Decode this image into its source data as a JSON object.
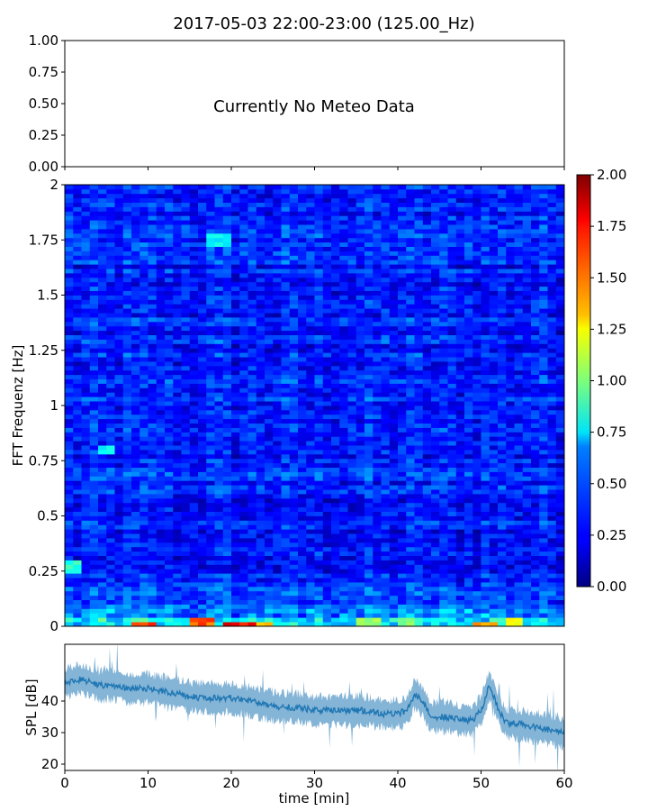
{
  "title": "2017-05-03 22:00-23:00 (125.00_Hz)",
  "meteo": {
    "message": "Currently No Meteo Data",
    "yticks": [
      "0.00",
      "0.25",
      "0.50",
      "0.75",
      "1.00"
    ]
  },
  "chart_data": [
    {
      "type": "line",
      "panel": "meteo",
      "title": "2017-05-03 22:00-23:00 (125.00_Hz)",
      "ylim": [
        0,
        1
      ],
      "xlim": [
        0,
        60
      ],
      "yticks": [
        "0.00",
        "0.25",
        "0.50",
        "0.75",
        "1.00"
      ],
      "xtick_labels_shown": false,
      "annotation": "Currently No Meteo Data",
      "series": []
    },
    {
      "type": "heatmap",
      "panel": "spectrogram",
      "ylabel": "FFT Frequenz [Hz]",
      "xlim": [
        0,
        60
      ],
      "ylim": [
        0,
        2
      ],
      "yticks": [
        "0",
        "0.25",
        "0.5",
        "0.75",
        "1",
        "1.25",
        "1.5",
        "1.75",
        "2"
      ],
      "colormap": "jet",
      "colorbar": {
        "range": [
          0,
          2
        ],
        "ticks": [
          "0.00",
          "0.25",
          "0.50",
          "0.75",
          "1.00",
          "1.25",
          "1.50",
          "1.75",
          "2.00"
        ]
      },
      "typical_value": 0.3,
      "hotspots": [
        {
          "time_min": 20.5,
          "freq_hz": 0.0,
          "value": 1.9
        },
        {
          "time_min": 21.5,
          "freq_hz": 0.0,
          "value": 1.85
        },
        {
          "time_min": 9.5,
          "freq_hz": 0.0,
          "value": 1.8
        },
        {
          "time_min": 17.0,
          "freq_hz": 0.02,
          "value": 1.7
        },
        {
          "time_min": 23.5,
          "freq_hz": 0.0,
          "value": 1.5
        },
        {
          "time_min": 50.5,
          "freq_hz": 0.0,
          "value": 1.55
        },
        {
          "time_min": 54.0,
          "freq_hz": 0.02,
          "value": 1.3
        },
        {
          "time_min": 36.5,
          "freq_hz": 0.02,
          "value": 1.15
        },
        {
          "time_min": 41.0,
          "freq_hz": 0.01,
          "value": 1.1
        },
        {
          "time_min": 1.0,
          "freq_hz": 0.27,
          "value": 0.9
        },
        {
          "time_min": 5.0,
          "freq_hz": 0.8,
          "value": 0.8
        },
        {
          "time_min": 18.5,
          "freq_hz": 1.75,
          "value": 0.8
        }
      ]
    },
    {
      "type": "line",
      "panel": "spl",
      "xlabel": "time [min]",
      "ylabel": "SPL [dB]",
      "xlim": [
        0,
        60
      ],
      "ylim": [
        18,
        58
      ],
      "xticks": [
        "0",
        "10",
        "20",
        "30",
        "40",
        "50",
        "60"
      ],
      "yticks": [
        "20",
        "30",
        "40"
      ],
      "color": "#1f77b4",
      "series": [
        {
          "x": [
            0,
            2,
            4,
            6,
            8,
            10,
            12,
            14,
            16,
            18,
            20,
            22,
            24,
            26,
            28,
            30,
            32,
            34,
            36,
            38,
            40,
            41,
            42,
            43,
            44,
            46,
            48,
            49,
            50,
            51,
            52,
            53,
            54,
            56,
            58,
            60
          ],
          "y": [
            46,
            47,
            45,
            45,
            44,
            44,
            43,
            42,
            41,
            41,
            41,
            40,
            39,
            38,
            38,
            37,
            37,
            37,
            37,
            36,
            36,
            37,
            42,
            40,
            35,
            35,
            34,
            34,
            37,
            45,
            38,
            33,
            33,
            32,
            31,
            30
          ]
        }
      ]
    }
  ]
}
